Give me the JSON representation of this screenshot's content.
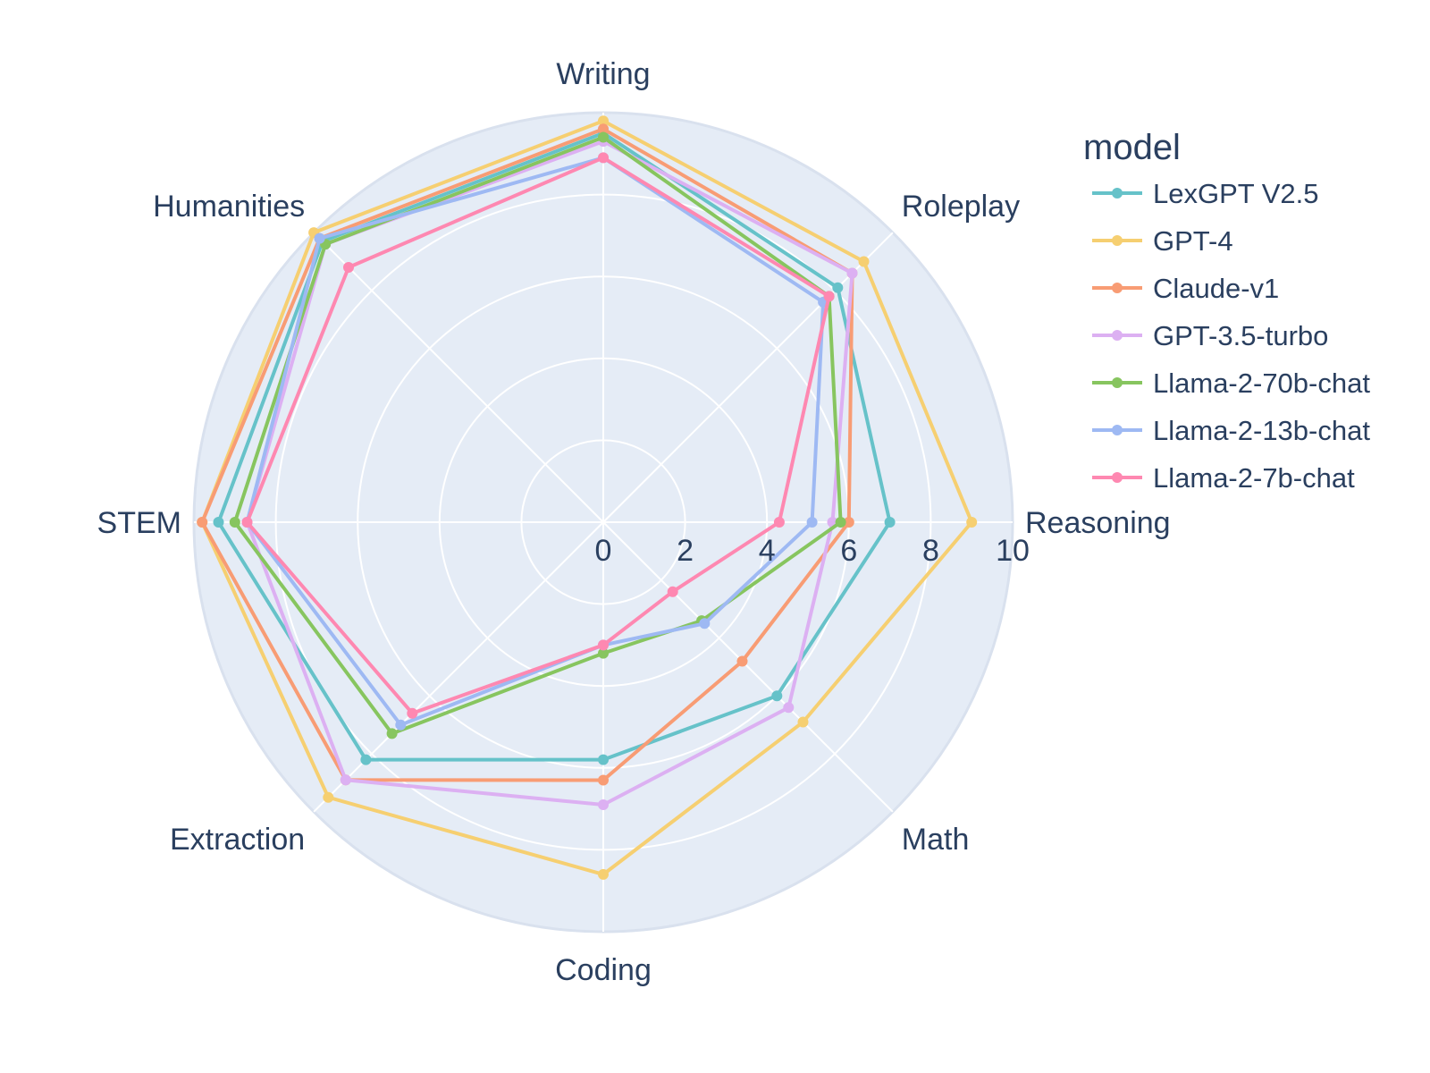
{
  "chart_data": {
    "type": "radar",
    "categories": [
      "Writing",
      "Roleplay",
      "Reasoning",
      "Math",
      "Coding",
      "Extraction",
      "STEM",
      "Humanities"
    ],
    "radial_range": [
      0,
      10
    ],
    "radial_ticks": [
      "0",
      "2",
      "4",
      "6",
      "8",
      "10"
    ],
    "legend_title": "model",
    "legend_position": "right",
    "grid": true,
    "background_color": "#e5ecf6",
    "series": [
      {
        "name": "LexGPT V2.5",
        "color": "#66c2c9",
        "values": [
          9.5,
          8.1,
          7.0,
          6.0,
          5.8,
          8.2,
          9.4,
          9.7
        ]
      },
      {
        "name": "GPT-4",
        "color": "#f6cf71",
        "values": [
          9.8,
          9.0,
          9.0,
          6.9,
          8.6,
          9.5,
          9.8,
          10.0
        ]
      },
      {
        "name": "Claude-v1",
        "color": "#f89c74",
        "values": [
          9.6,
          8.6,
          6.0,
          4.8,
          6.3,
          8.9,
          9.8,
          9.8
        ]
      },
      {
        "name": "GPT-3.5-turbo",
        "color": "#dcb0f2",
        "values": [
          9.3,
          8.6,
          5.6,
          6.4,
          6.9,
          8.9,
          8.7,
          9.6
        ]
      },
      {
        "name": "Llama-2-70b-chat",
        "color": "#87c55f",
        "values": [
          9.4,
          7.8,
          5.8,
          3.4,
          3.2,
          7.3,
          9.0,
          9.6
        ]
      },
      {
        "name": "Llama-2-13b-chat",
        "color": "#9eb9f3",
        "values": [
          8.9,
          7.6,
          5.1,
          3.5,
          3.0,
          7.0,
          8.7,
          9.8
        ]
      },
      {
        "name": "Llama-2-7b-chat",
        "color": "#fe88b1",
        "values": [
          8.9,
          7.8,
          4.3,
          2.4,
          3.0,
          6.6,
          8.7,
          8.8
        ]
      }
    ]
  }
}
